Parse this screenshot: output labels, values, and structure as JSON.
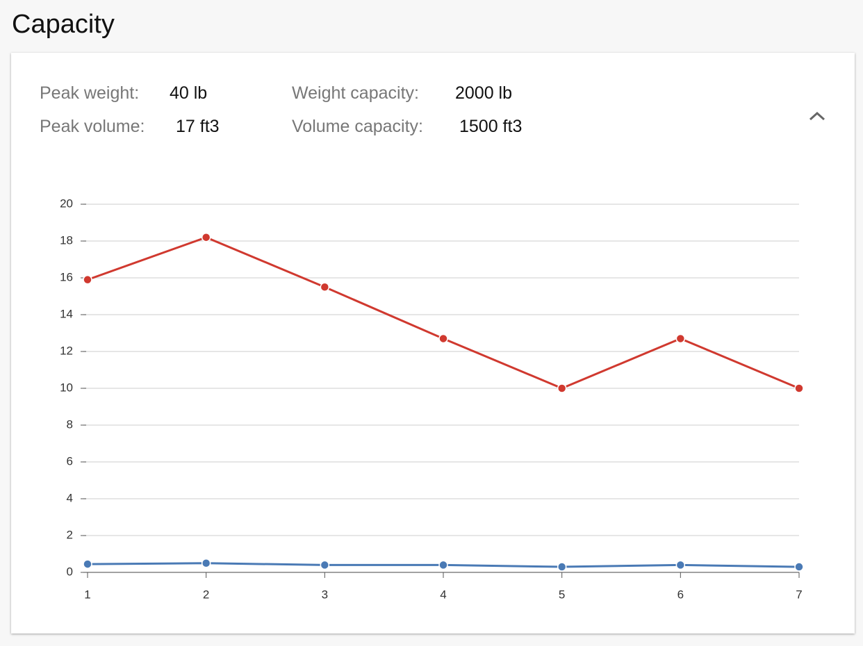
{
  "header": {
    "title": "Capacity"
  },
  "stats": [
    {
      "label": "Peak weight:",
      "value": "40 lb"
    },
    {
      "label": "Peak volume:",
      "value": "17 ft3"
    },
    {
      "label": "Weight capacity:",
      "value": "2000 lb"
    },
    {
      "label": "Volume capacity:",
      "value": "1500 ft3"
    }
  ],
  "chart_data": {
    "type": "line",
    "x": [
      1,
      2,
      3,
      4,
      5,
      6,
      7
    ],
    "series": [
      {
        "color": "#d0392f",
        "values": [
          15.9,
          18.2,
          15.5,
          12.7,
          10,
          12.7,
          10
        ]
      },
      {
        "color": "#4a7ab5",
        "values": [
          0.45,
          0.5,
          0.4,
          0.4,
          0.3,
          0.4,
          0.3
        ]
      }
    ],
    "xlim": [
      1,
      7
    ],
    "xticks": [
      1,
      2,
      3,
      4,
      5,
      6,
      7
    ],
    "ylim": [
      0,
      20
    ],
    "yticks": [
      0,
      2,
      4,
      6,
      8,
      10,
      12,
      14,
      16,
      18,
      20
    ],
    "grid": true
  }
}
